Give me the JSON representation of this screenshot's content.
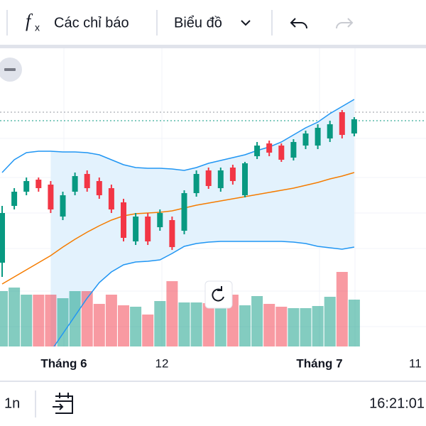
{
  "header": {
    "icon_f": "f",
    "icon_x": "x",
    "indicators": "Các chỉ báo",
    "chart_menu": "Biểu đồ"
  },
  "chart_data": {
    "type": "candlestick",
    "up_color": "#089981",
    "down_color": "#f23645",
    "ylim": [
      0,
      300
    ],
    "y2lim": [
      0,
      120
    ],
    "open": [
      90,
      170,
      190,
      207,
      200,
      155,
      190,
      215,
      205,
      195,
      175,
      120,
      155,
      140,
      150,
      135,
      188,
      220,
      195,
      224,
      185,
      240,
      258,
      255,
      238,
      255,
      255,
      265,
      302,
      272
    ],
    "high": [
      170,
      195,
      210,
      210,
      205,
      190,
      217,
      220,
      210,
      200,
      180,
      160,
      160,
      165,
      155,
      192,
      220,
      224,
      224,
      228,
      232,
      260,
      262,
      258,
      264,
      276,
      285,
      290,
      305,
      295
    ],
    "low": [
      70,
      165,
      185,
      190,
      160,
      150,
      185,
      190,
      180,
      160,
      120,
      115,
      115,
      135,
      108,
      130,
      183,
      194,
      190,
      200,
      182,
      236,
      240,
      232,
      234,
      250,
      250,
      260,
      265,
      268
    ],
    "close": [
      160,
      190,
      205,
      195,
      165,
      185,
      212,
      195,
      185,
      165,
      125,
      155,
      120,
      160,
      112,
      188,
      215,
      198,
      220,
      205,
      230,
      255,
      245,
      235,
      260,
      272,
      280,
      285,
      270,
      292
    ],
    "volume": [
      78,
      83,
      73,
      73,
      73,
      68,
      78,
      78,
      60,
      73,
      58,
      56,
      45,
      64,
      92,
      62,
      62,
      61,
      83,
      73,
      58,
      71,
      60,
      56,
      54,
      54,
      57,
      70,
      105,
      66
    ],
    "upper_band": {
      "color": "#2196f3",
      "values": [
        217,
        235,
        245,
        247,
        247,
        246,
        246,
        245,
        242,
        235,
        228,
        224,
        223,
        223,
        222,
        220,
        224,
        230,
        234,
        238,
        242,
        248,
        253,
        260,
        270,
        280,
        288,
        300,
        310,
        320
      ]
    },
    "lower_band": {
      "color": "#2196f3",
      "values": [
        null,
        null,
        null,
        null,
        -35,
        -10,
        15,
        40,
        62,
        77,
        87,
        91,
        92,
        94,
        103,
        113,
        117,
        119,
        120,
        120,
        120,
        120,
        120,
        120,
        119,
        117,
        113,
        111,
        109,
        112
      ]
    },
    "basis": {
      "color": "#f57c00",
      "values": [
        60,
        70,
        80,
        90,
        100,
        112,
        123,
        133,
        142,
        150,
        156,
        159,
        160,
        161,
        163,
        167,
        171,
        174,
        177,
        180,
        183,
        186,
        189,
        192,
        195,
        199,
        203,
        208,
        212,
        217
      ]
    },
    "band_fill": "#e3f2fd",
    "x_labels": [
      "Tháng 6",
      "12",
      "Tháng 7",
      "11"
    ]
  },
  "footer": {
    "interval": "1n",
    "time": "16:21:01"
  }
}
